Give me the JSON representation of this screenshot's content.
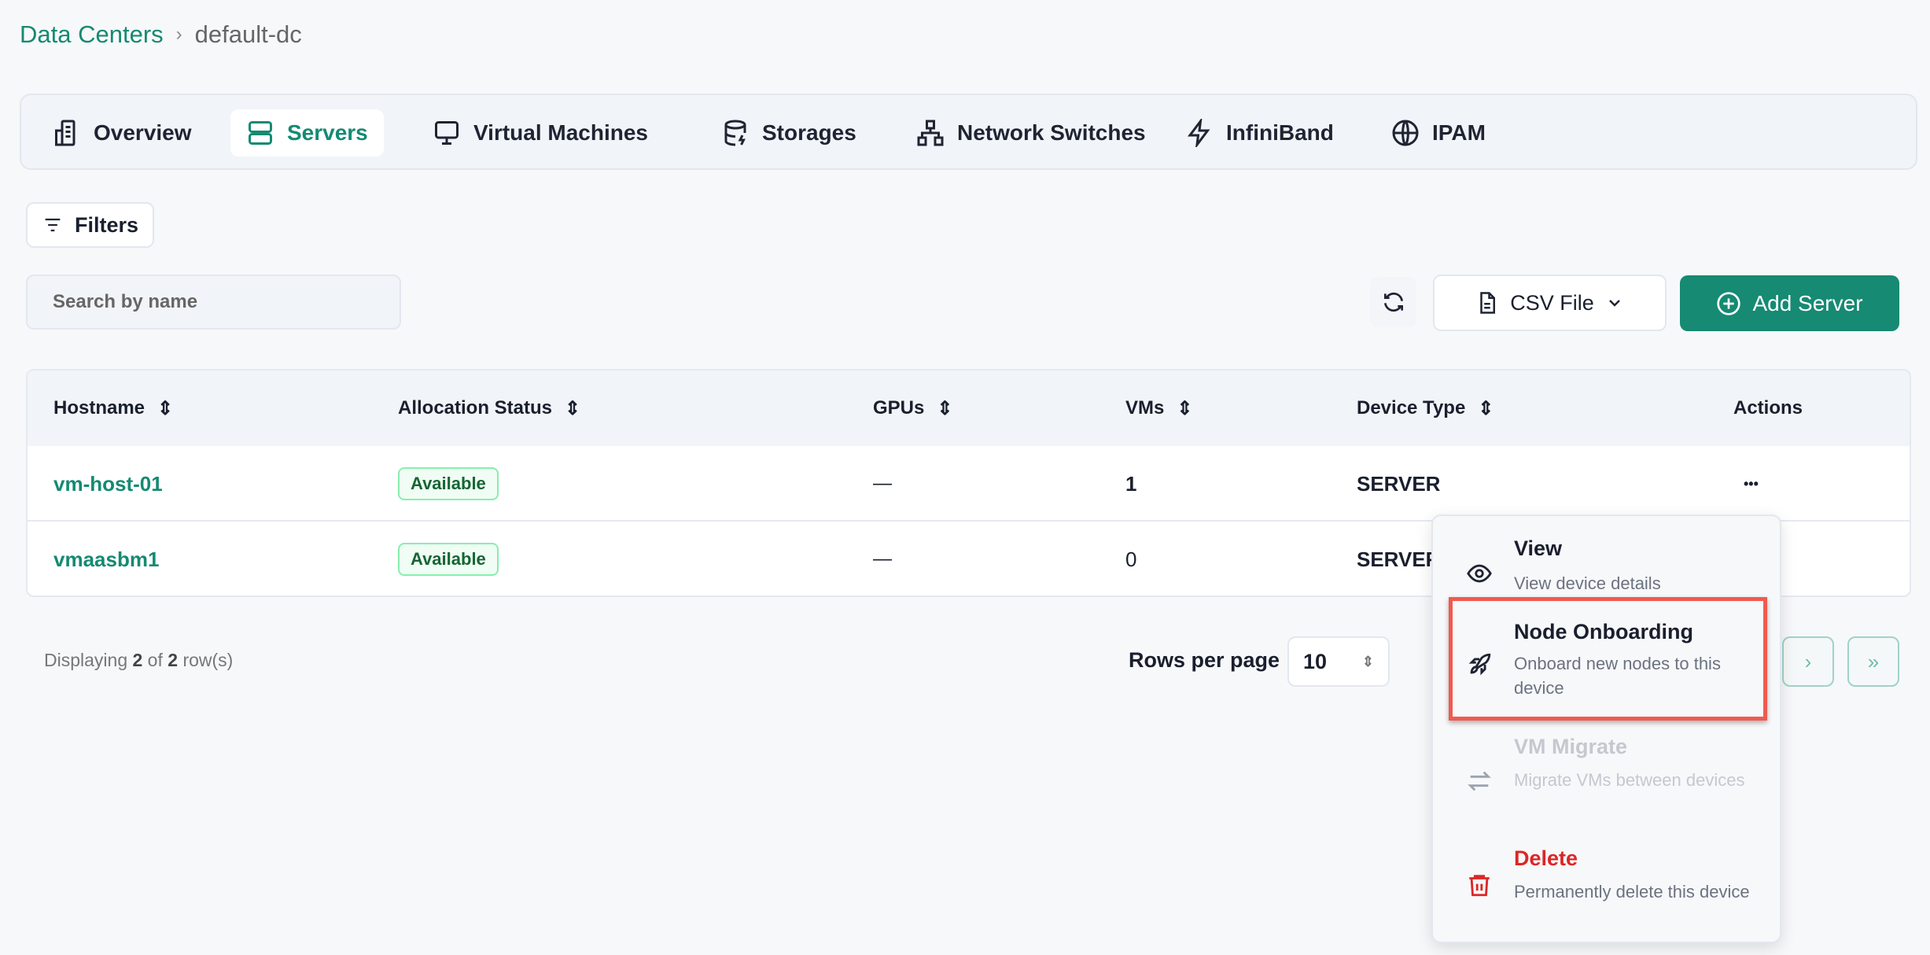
{
  "breadcrumb": {
    "root": "Data Centers",
    "separator": "›",
    "current": "default-dc"
  },
  "tabs": [
    {
      "label": "Overview",
      "icon": "building-icon"
    },
    {
      "label": "Servers",
      "icon": "server-icon",
      "active": true
    },
    {
      "label": "Virtual Machines",
      "icon": "monitor-icon"
    },
    {
      "label": "Storages",
      "icon": "database-icon"
    },
    {
      "label": "Network Switches",
      "icon": "network-icon"
    },
    {
      "label": "InfiniBand",
      "icon": "lightning-icon"
    },
    {
      "label": "IPAM",
      "icon": "globe-icon"
    }
  ],
  "toolbar": {
    "filters_label": "Filters",
    "search_placeholder": "Search by name",
    "csv_label": "CSV File",
    "add_label": "Add Server"
  },
  "table": {
    "columns": [
      "Hostname",
      "Allocation Status",
      "GPUs",
      "VMs",
      "Device Type",
      "Actions"
    ],
    "rows": [
      {
        "hostname": "vm-host-01",
        "status": "Available",
        "gpus": "—",
        "vms": "1",
        "device_type": "SERVER",
        "actions": "•••"
      },
      {
        "hostname": "vmaasbm1",
        "status": "Available",
        "gpus": "—",
        "vms": "0",
        "device_type": "SERVER"
      }
    ]
  },
  "footer": {
    "prefix": "Displaying ",
    "shown": "2",
    "of": " of ",
    "total": "2",
    "suffix": " row(s)",
    "rows_per_page_label": "Rows per page",
    "rows_per_page": "10",
    "next": "›",
    "last": "»"
  },
  "menu": [
    {
      "title": "View",
      "desc": "View device details",
      "icon": "eye-icon"
    },
    {
      "title": "Node Onboarding",
      "desc": "Onboard new nodes to this device",
      "icon": "rocket-icon",
      "highlighted": true
    },
    {
      "title": "VM Migrate",
      "desc": "Migrate VMs between devices",
      "icon": "arrows-swap-icon",
      "disabled": true
    },
    {
      "title": "Delete",
      "desc": "Permanently delete this device",
      "icon": "trash-icon",
      "color": "#dc2626"
    }
  ],
  "colors": {
    "accent": "#168a73",
    "danger": "#dc2626",
    "highlight": "#f05a4f"
  }
}
